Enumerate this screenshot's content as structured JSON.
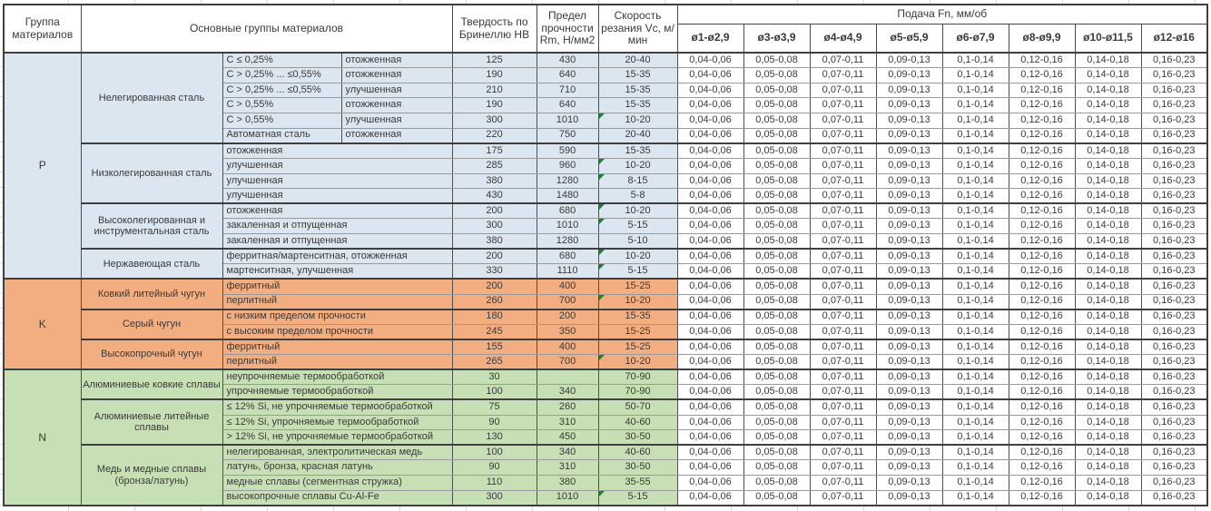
{
  "header": {
    "col_group": "Группа материалов",
    "col_material": "Основные группы материалов",
    "col_hardness": "Твердость по Бринеллю HB",
    "col_strength": "Предел прочности Rm, Н/мм2",
    "col_speed": "Скорость резания Vc, м/мин",
    "feed_title": "Подача Fn, мм/об",
    "feed_cols": [
      "ø1-ø2,9",
      "ø3-ø3,9",
      "ø4-ø4,9",
      "ø5-ø5,9",
      "ø6-ø7,9",
      "ø8-ø9,9",
      "ø10-ø11,5",
      "ø12-ø16"
    ]
  },
  "feed_values": [
    "0,04-0,06",
    "0,05-0,08",
    "0,07-0,11",
    "0,09-0,13",
    "0,1-0,14",
    "0,12-0,16",
    "0,14-0,18",
    "0,16-0,23"
  ],
  "colors": {
    "group_p": "#dce6f1",
    "group_k": "#f2ae80",
    "group_n": "#c7dfb5",
    "marker": "#1e7e34"
  },
  "groups": [
    {
      "code": "P",
      "color": "#dce6f1",
      "families": [
        {
          "name": "Нелегированная сталь",
          "rows": [
            {
              "d1": "C ≤ 0,25%",
              "d2": "отожженная",
              "hb": "125",
              "rm": "430",
              "vc": "20-40",
              "marker": false
            },
            {
              "d1": "C > 0,25% ... ≤0,55%",
              "d2": "отожженная",
              "hb": "190",
              "rm": "640",
              "vc": "15-35",
              "marker": false
            },
            {
              "d1": "C > 0,25% ... ≤0,55%",
              "d2": "улучшенная",
              "hb": "210",
              "rm": "710",
              "vc": "15-35",
              "marker": false
            },
            {
              "d1": "C > 0,55%",
              "d2": "отожженная",
              "hb": "190",
              "rm": "640",
              "vc": "15-35",
              "marker": false
            },
            {
              "d1": "C > 0,55%",
              "d2": "улучшенная",
              "hb": "300",
              "rm": "1010",
              "vc": "10-20",
              "marker": true
            },
            {
              "d1": "Автоматная сталь",
              "d2": "отожженная",
              "hb": "220",
              "rm": "750",
              "vc": "20-40",
              "marker": false
            }
          ]
        },
        {
          "name": "Низколегированная сталь",
          "rows": [
            {
              "d1": "отожженная",
              "hb": "175",
              "rm": "590",
              "vc": "15-35",
              "marker": false
            },
            {
              "d1": "улучшенная",
              "hb": "285",
              "rm": "960",
              "vc": "10-20",
              "marker": true
            },
            {
              "d1": "улучшенная",
              "hb": "380",
              "rm": "1280",
              "vc": "8-15",
              "marker": true
            },
            {
              "d1": "улучшенная",
              "hb": "430",
              "rm": "1480",
              "vc": "5-8",
              "marker": false
            }
          ]
        },
        {
          "name": "Высоколегированная и инструментальная сталь",
          "rows": [
            {
              "d1": "отожженная",
              "hb": "200",
              "rm": "680",
              "vc": "10-20",
              "marker": true
            },
            {
              "d1": "закаленная и отпущенная",
              "hb": "300",
              "rm": "1010",
              "vc": "5-15",
              "marker": true
            },
            {
              "d1": "закаленная и отпущенная",
              "hb": "380",
              "rm": "1280",
              "vc": "5-10",
              "marker": false
            }
          ]
        },
        {
          "name": "Нержавеющая сталь",
          "rows": [
            {
              "d1": "ферритная/мартенситная, отожженная",
              "hb": "200",
              "rm": "680",
              "vc": "10-20",
              "marker": true
            },
            {
              "d1": "мартенситная, улучшенная",
              "hb": "330",
              "rm": "1110",
              "vc": "5-15",
              "marker": true
            }
          ]
        }
      ]
    },
    {
      "code": "K",
      "color": "#f2ae80",
      "families": [
        {
          "name": "Ковкий литейный чугун",
          "rows": [
            {
              "d1": "ферритный",
              "hb": "200",
              "rm": "400",
              "vc": "15-25",
              "marker": false
            },
            {
              "d1": "перлитный",
              "hb": "260",
              "rm": "700",
              "vc": "10-20",
              "marker": true
            }
          ]
        },
        {
          "name": "Серый чугун",
          "rows": [
            {
              "d1": "с низким пределом прочности",
              "hb": "180",
              "rm": "200",
              "vc": "15-35",
              "marker": false
            },
            {
              "d1": "с высоким пределом прочности",
              "hb": "245",
              "rm": "350",
              "vc": "15-25",
              "marker": false
            }
          ]
        },
        {
          "name": "Высокопрочный чугун",
          "rows": [
            {
              "d1": "ферритный",
              "hb": "155",
              "rm": "400",
              "vc": "15-25",
              "marker": false
            },
            {
              "d1": "перлитный",
              "hb": "265",
              "rm": "700",
              "vc": "10-20",
              "marker": true
            }
          ]
        }
      ]
    },
    {
      "code": "N",
      "color": "#c7dfb5",
      "families": [
        {
          "name": "Алюминиевые ковкие сплавы",
          "rows": [
            {
              "d1": "неупрочняемые термообработкой",
              "hb": "30",
              "rm": "",
              "vc": "70-90",
              "marker": false
            },
            {
              "d1": "упрочняемые термообработкой",
              "hb": "100",
              "rm": "340",
              "vc": "70-90",
              "marker": false
            }
          ]
        },
        {
          "name": "Алюминиевые литейные сплавы",
          "rows": [
            {
              "d1": "≤ 12% Si, не упрочняемые термообработкой",
              "hb": "75",
              "rm": "260",
              "vc": "50-70",
              "marker": false
            },
            {
              "d1": "≤ 12% Si, упрочняемые термообработкой",
              "hb": "90",
              "rm": "310",
              "vc": "40-60",
              "marker": false
            },
            {
              "d1": "> 12% Si, не упрочняемые термообработкой",
              "hb": "130",
              "rm": "450",
              "vc": "30-50",
              "marker": false
            }
          ]
        },
        {
          "name": "Медь и медные сплавы (бронза/латунь)",
          "rows": [
            {
              "d1": "нелегированная, электролитическая медь",
              "hb": "100",
              "rm": "340",
              "vc": "40-60",
              "marker": false
            },
            {
              "d1": "латунь, бронза, красная латунь",
              "hb": "90",
              "rm": "310",
              "vc": "30-50",
              "marker": false
            },
            {
              "d1": "медные сплавы (сегментная стружка)",
              "hb": "110",
              "rm": "380",
              "vc": "35-55",
              "marker": false
            },
            {
              "d1": "высокопрочные сплавы Cu-Al-Fe",
              "hb": "300",
              "rm": "1010",
              "vc": "5-15",
              "marker": true
            }
          ]
        }
      ]
    }
  ]
}
